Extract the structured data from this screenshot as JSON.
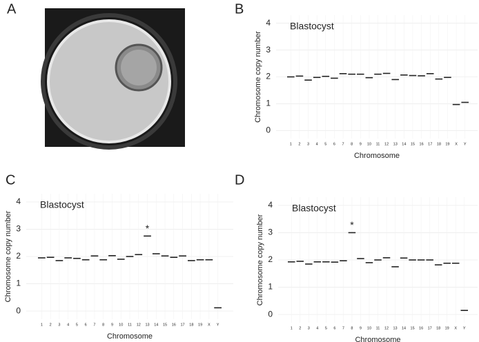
{
  "image_panel": {
    "label": "A"
  },
  "chart_data": [
    {
      "type": "segment",
      "panel": "B",
      "title": "Blastocyst",
      "x_label": "Chromosome",
      "y_label": "Chromosome copy number",
      "categories": [
        "1",
        "2",
        "3",
        "4",
        "5",
        "6",
        "7",
        "8",
        "9",
        "10",
        "11",
        "12",
        "13",
        "14",
        "15",
        "16",
        "17",
        "18",
        "19",
        "X",
        "Y"
      ],
      "values": [
        2.0,
        2.03,
        1.88,
        1.98,
        2.02,
        1.95,
        2.12,
        2.1,
        2.1,
        1.97,
        2.1,
        2.13,
        1.9,
        2.07,
        2.05,
        2.04,
        2.12,
        1.92,
        1.98,
        0.97,
        1.05
      ],
      "color": "#222222",
      "ylim": [
        -0.3,
        4.3
      ],
      "yticks": [
        0,
        1,
        2,
        3,
        4
      ],
      "grid": true
    },
    {
      "type": "segment",
      "panel": "C",
      "title": "Blastocyst",
      "x_label": "Chromosome",
      "y_label": "Chromosome copy number",
      "categories": [
        "1",
        "2",
        "3",
        "4",
        "5",
        "6",
        "7",
        "8",
        "9",
        "10",
        "11",
        "12",
        "13",
        "14",
        "15",
        "16",
        "17",
        "18",
        "19",
        "X",
        "Y"
      ],
      "values": [
        1.95,
        1.97,
        1.85,
        1.95,
        1.93,
        1.88,
        2.02,
        1.88,
        2.03,
        1.9,
        2.0,
        2.07,
        2.75,
        2.1,
        2.02,
        1.97,
        2.02,
        1.85,
        1.88,
        1.88,
        0.12
      ],
      "color": "#222222",
      "ylim": [
        -0.3,
        4.3
      ],
      "yticks": [
        0,
        1,
        2,
        3,
        4
      ],
      "grid": true,
      "annotations": [
        {
          "text": "*",
          "category": "13"
        }
      ]
    },
    {
      "type": "segment",
      "panel": "D",
      "title": "Blastocyst",
      "x_label": "Chromosome",
      "y_label": "Chromosome copy number",
      "categories": [
        "1",
        "2",
        "3",
        "4",
        "5",
        "6",
        "7",
        "8",
        "9",
        "10",
        "11",
        "12",
        "13",
        "14",
        "15",
        "16",
        "17",
        "18",
        "19",
        "X",
        "Y"
      ],
      "values": [
        1.93,
        1.95,
        1.85,
        1.93,
        1.93,
        1.92,
        1.97,
        3.0,
        2.05,
        1.9,
        2.0,
        2.08,
        1.75,
        2.07,
        2.0,
        2.0,
        2.0,
        1.82,
        1.88,
        1.88,
        0.15
      ],
      "color": "#222222",
      "ylim": [
        -0.3,
        4.3
      ],
      "yticks": [
        0,
        1,
        2,
        3,
        4
      ],
      "grid": true,
      "annotations": [
        {
          "text": "*",
          "category": "8"
        }
      ]
    }
  ]
}
